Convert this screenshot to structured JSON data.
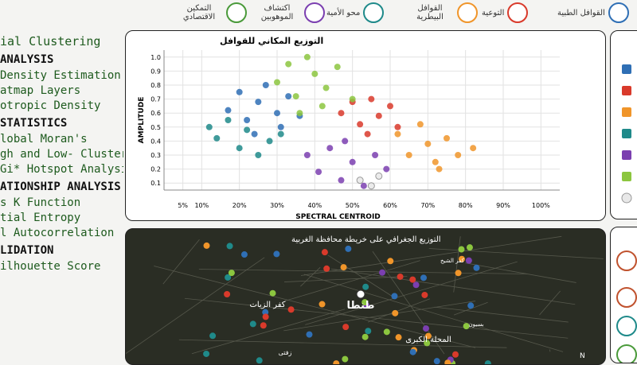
{
  "nav": {
    "items": [
      "القوافل الطبية",
      "التوعية",
      "القوافل البيطرية",
      "محو الأمية",
      "اكتشاف الموهوبين",
      "التمكين الاقتصادي"
    ]
  },
  "sidebar": {
    "lead": "ial Clustering",
    "groups": [
      {
        "heading": "ANALYSIS",
        "items": [
          "Density Estimation",
          "atmap Layers",
          "otropic Density"
        ]
      },
      {
        "heading": "STATISTICS",
        "items": [
          "lobal Moran's",
          "gh and Low- Clusters",
          "Gi* Hotspot Analysis"
        ]
      },
      {
        "heading": "ATIONSHIP ANALYSIS",
        "items": [
          "s K Function",
          "tial Entropy",
          "l Autocorrelation"
        ]
      },
      {
        "heading": "LIDATION",
        "items": [
          "ilhouette Score"
        ]
      }
    ]
  },
  "chart_data": {
    "type": "scatter",
    "title": "التوزيع المكاني للقوافل",
    "x_label": "SPECTRAL CENTROID",
    "y_label": "AMPLITUDE",
    "xlim": [
      0,
      105
    ],
    "ylim": [
      0.05,
      1.05
    ],
    "xticks": [
      {
        "value": 5,
        "label": "5%"
      },
      {
        "value": 10,
        "label": "10%"
      },
      {
        "value": 20,
        "label": "20%"
      },
      {
        "value": 30,
        "label": "30%"
      },
      {
        "value": 40,
        "label": "40%"
      },
      {
        "value": 50,
        "label": "50%"
      },
      {
        "value": 60,
        "label": "60%"
      },
      {
        "value": 70,
        "label": "70%"
      },
      {
        "value": 80,
        "label": "80%"
      },
      {
        "value": 90,
        "label": "90%"
      },
      {
        "value": 100,
        "label": "100%"
      }
    ],
    "yticks": [
      0.1,
      0.2,
      0.3,
      0.4,
      0.5,
      0.6,
      0.7,
      0.8,
      0.9,
      {
        "value": 1,
        "label": "1.0"
      }
    ],
    "grid": true,
    "series": [
      {
        "color": "#2f6fb5",
        "x": [
          17,
          20,
          22,
          25,
          27,
          30,
          33,
          36,
          24,
          31
        ],
        "values": [
          0.62,
          0.75,
          0.55,
          0.68,
          0.8,
          0.6,
          0.72,
          0.58,
          0.45,
          0.5
        ]
      },
      {
        "color": "#d93a2b",
        "x": [
          47,
          50,
          52,
          55,
          57,
          60,
          62,
          54
        ],
        "values": [
          0.6,
          0.68,
          0.52,
          0.7,
          0.58,
          0.65,
          0.5,
          0.45
        ]
      },
      {
        "color": "#f0952a",
        "x": [
          62,
          65,
          68,
          70,
          72,
          75,
          78,
          82,
          73
        ],
        "values": [
          0.45,
          0.3,
          0.52,
          0.38,
          0.25,
          0.42,
          0.3,
          0.35,
          0.2
        ]
      },
      {
        "color": "#1f8a8a",
        "x": [
          12,
          14,
          17,
          20,
          22,
          25,
          28,
          31
        ],
        "values": [
          0.5,
          0.42,
          0.55,
          0.35,
          0.48,
          0.3,
          0.4,
          0.45
        ]
      },
      {
        "color": "#7b3fb0",
        "x": [
          38,
          41,
          44,
          47,
          50,
          53,
          56,
          59,
          48
        ],
        "values": [
          0.3,
          0.18,
          0.35,
          0.12,
          0.25,
          0.08,
          0.3,
          0.2,
          0.4
        ]
      },
      {
        "color": "#8cc63f",
        "x": [
          30,
          33,
          35,
          38,
          40,
          43,
          46,
          50,
          36,
          42
        ],
        "values": [
          0.82,
          0.95,
          0.72,
          1,
          0.88,
          0.78,
          0.93,
          0.7,
          0.6,
          0.65
        ]
      },
      {
        "color": "#e8e8e8",
        "x": [
          52,
          55,
          57
        ],
        "values": [
          0.12,
          0.08,
          0.15
        ]
      }
    ]
  },
  "map": {
    "title": "التوزيع الجغرافي على خريطة محافظة الغربية",
    "places": [
      "طنطا",
      "كفر الزيات",
      "المحلة الكبرى",
      "بسيون",
      "كفر الشيخ",
      "زفتى"
    ],
    "compass": "N"
  }
}
